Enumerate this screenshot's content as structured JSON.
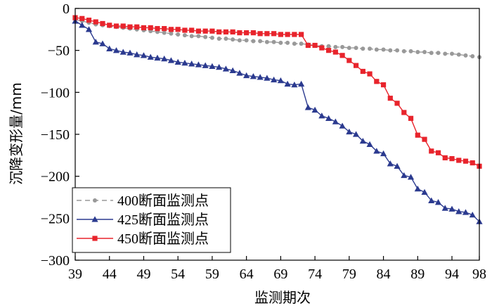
{
  "chart_data": {
    "type": "line",
    "title": "",
    "xlabel": "监测期次",
    "ylabel": "沉降变形量/mm",
    "xlim": [
      39,
      98
    ],
    "ylim": [
      -300,
      0
    ],
    "xticks": [
      39,
      44,
      49,
      54,
      59,
      64,
      69,
      74,
      79,
      84,
      89,
      94,
      98
    ],
    "yticks": [
      0,
      -50,
      -100,
      -150,
      -200,
      -250,
      -300
    ],
    "grid": false,
    "legend_position": "bottom-left",
    "series": [
      {
        "name": "400断面监测点",
        "color": "#999999",
        "marker": "circle",
        "dashed": true,
        "x": [
          39,
          40,
          41,
          42,
          43,
          44,
          45,
          46,
          47,
          48,
          49,
          50,
          51,
          52,
          53,
          54,
          55,
          56,
          57,
          58,
          59,
          60,
          61,
          62,
          63,
          64,
          65,
          66,
          67,
          68,
          69,
          70,
          71,
          72,
          73,
          74,
          75,
          76,
          77,
          78,
          79,
          80,
          81,
          82,
          83,
          84,
          85,
          86,
          87,
          88,
          89,
          90,
          91,
          92,
          93,
          94,
          95,
          96,
          97,
          98
        ],
        "values": [
          -13,
          -15,
          -17,
          -19,
          -20,
          -21,
          -22,
          -23,
          -24,
          -25,
          -26,
          -27,
          -28,
          -29,
          -30,
          -31,
          -32,
          -33,
          -33,
          -34,
          -35,
          -36,
          -36,
          -37,
          -38,
          -38,
          -39,
          -39,
          -40,
          -40,
          -41,
          -41,
          -42,
          -42,
          -43,
          -44,
          -45,
          -45,
          -46,
          -46,
          -47,
          -47,
          -48,
          -48,
          -49,
          -49,
          -50,
          -50,
          -51,
          -51,
          -52,
          -52,
          -53,
          -53,
          -54,
          -54,
          -55,
          -56,
          -57,
          -58
        ]
      },
      {
        "name": "425断面监测点",
        "color": "#2b3a8f",
        "marker": "triangle",
        "dashed": false,
        "x": [
          39,
          40,
          41,
          42,
          43,
          44,
          45,
          46,
          47,
          48,
          49,
          50,
          51,
          52,
          53,
          54,
          55,
          56,
          57,
          58,
          59,
          60,
          61,
          62,
          63,
          64,
          65,
          66,
          67,
          68,
          69,
          70,
          71,
          72,
          73,
          74,
          75,
          76,
          77,
          78,
          79,
          80,
          81,
          82,
          83,
          84,
          85,
          86,
          87,
          88,
          89,
          90,
          91,
          92,
          93,
          94,
          95,
          96,
          97,
          98
        ],
        "values": [
          -15,
          -20,
          -25,
          -40,
          -42,
          -48,
          -50,
          -52,
          -53,
          -55,
          -56,
          -58,
          -59,
          -60,
          -62,
          -64,
          -65,
          -66,
          -67,
          -68,
          -69,
          -70,
          -72,
          -74,
          -77,
          -80,
          -81,
          -82,
          -83,
          -85,
          -86,
          -90,
          -91,
          -90,
          -118,
          -121,
          -128,
          -131,
          -135,
          -140,
          -147,
          -150,
          -158,
          -162,
          -170,
          -173,
          -185,
          -188,
          -199,
          -201,
          -215,
          -219,
          -229,
          -231,
          -238,
          -239,
          -242,
          -243,
          -246,
          -254
        ]
      },
      {
        "name": "450断面监测点",
        "color": "#e8242c",
        "marker": "square",
        "dashed": false,
        "x": [
          39,
          40,
          41,
          42,
          43,
          44,
          45,
          46,
          47,
          48,
          49,
          50,
          51,
          52,
          53,
          54,
          55,
          56,
          57,
          58,
          59,
          60,
          61,
          62,
          63,
          64,
          65,
          66,
          67,
          68,
          69,
          70,
          71,
          72,
          73,
          74,
          75,
          76,
          77,
          78,
          79,
          80,
          81,
          82,
          83,
          84,
          85,
          86,
          87,
          88,
          89,
          90,
          91,
          92,
          93,
          94,
          95,
          96,
          97,
          98
        ],
        "values": [
          -11,
          -12,
          -14,
          -16,
          -18,
          -20,
          -21,
          -21,
          -22,
          -22,
          -23,
          -23,
          -24,
          -24,
          -25,
          -25,
          -26,
          -26,
          -27,
          -27,
          -27,
          -28,
          -28,
          -28,
          -29,
          -29,
          -29,
          -30,
          -30,
          -30,
          -31,
          -31,
          -31,
          -31,
          -44,
          -44,
          -47,
          -50,
          -52,
          -56,
          -62,
          -68,
          -75,
          -78,
          -87,
          -91,
          -107,
          -113,
          -124,
          -131,
          -151,
          -156,
          -170,
          -172,
          -178,
          -179,
          -181,
          -182,
          -184,
          -188
        ]
      }
    ]
  }
}
